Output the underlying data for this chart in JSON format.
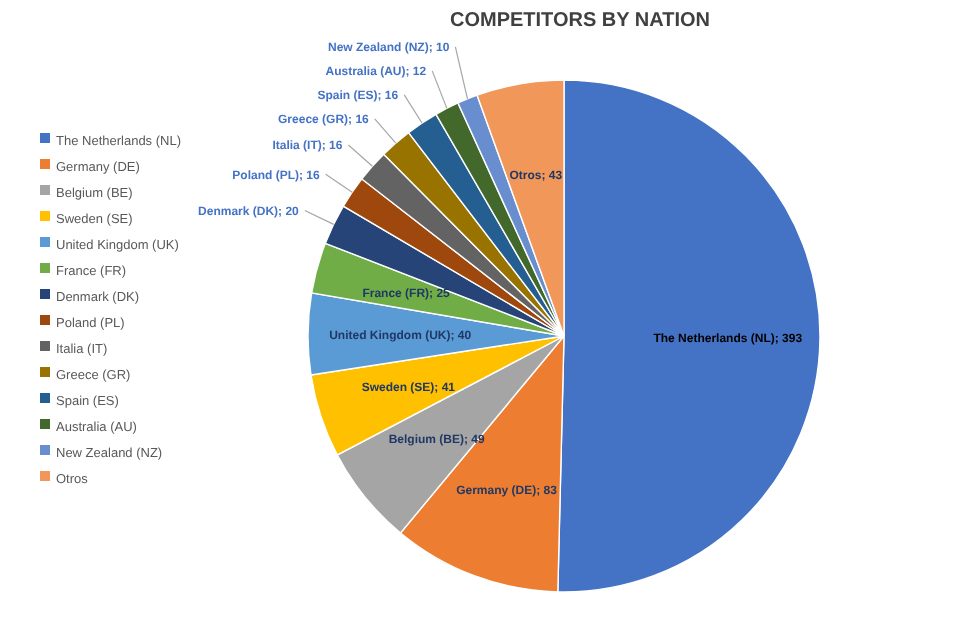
{
  "chart_data": {
    "type": "pie",
    "title": "COMPETITORS BY NATION",
    "categories": [
      "The Netherlands (NL)",
      "Germany (DE)",
      "Belgium (BE)",
      "Sweden (SE)",
      "United Kingdom (UK)",
      "France (FR)",
      "Denmark (DK)",
      "Poland (PL)",
      "Italia (IT)",
      "Greece (GR)",
      "Spain (ES)",
      "Australia (AU)",
      "New Zealand (NZ)",
      "Otros"
    ],
    "values": [
      393,
      83,
      49,
      41,
      40,
      25,
      20,
      16,
      16,
      16,
      16,
      12,
      10,
      43
    ],
    "colors": [
      "#4472c4",
      "#ed7d31",
      "#a5a5a5",
      "#ffc000",
      "#5b9bd5",
      "#70ad47",
      "#264478",
      "#9e480e",
      "#636363",
      "#997300",
      "#255e91",
      "#43682b",
      "#698ed0",
      "#f1975a"
    ],
    "value_labels": [
      "The Netherlands (NL); 393",
      "Germany (DE); 83",
      "Belgium (BE); 49",
      "Sweden (SE); 41",
      "United Kingdom (UK); 40",
      "France (FR); 25",
      "Denmark (DK); 20",
      "Poland (PL); 16",
      "Italia (IT); 16",
      "Greece (GR); 16",
      "Spain (ES); 16",
      "Australia (AU); 12",
      "New Zealand (NZ); 10",
      "Otros; 43"
    ],
    "legend": "left"
  }
}
